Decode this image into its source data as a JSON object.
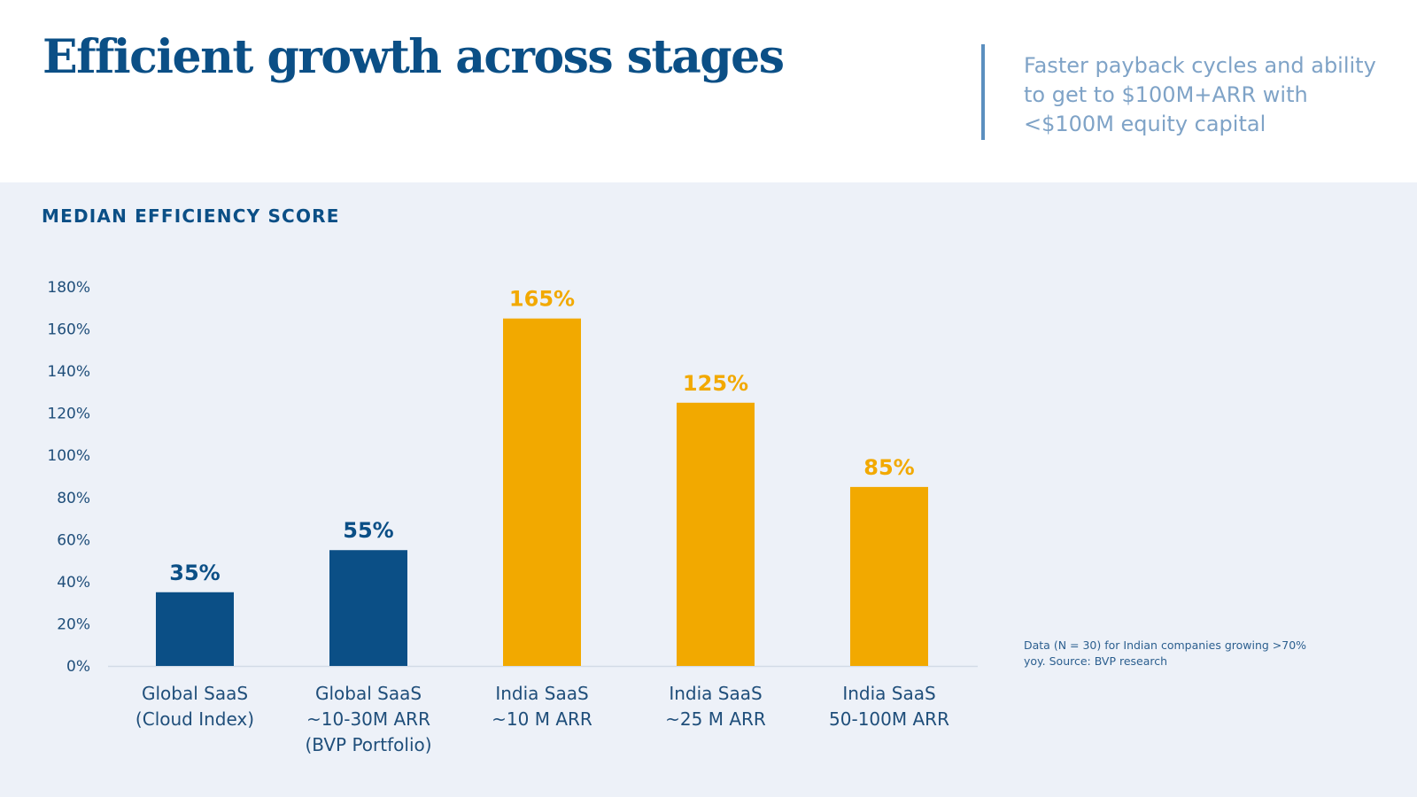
{
  "header": {
    "title": "Efficient growth across stages",
    "subtitle": "Faster payback cycles and ability to get to $100M+ARR with <$100M equity capital"
  },
  "panel": {
    "chart_label": "MEDIAN EFFICIENCY SCORE",
    "note": "Data (N = 30) for Indian companies growing >70% yoy. Source: BVP research"
  },
  "colors": {
    "global": "#0b4f86",
    "india": "#f2a900",
    "axis_text": "#1f4e7a",
    "panel_bg": "#edf1f8"
  },
  "chart_data": {
    "type": "bar",
    "title": "MEDIAN EFFICIENCY SCORE",
    "xlabel": "",
    "ylabel": "",
    "ylim": [
      0,
      180
    ],
    "yticks": [
      0,
      20,
      40,
      60,
      80,
      100,
      120,
      140,
      160,
      180
    ],
    "ytick_labels": [
      "0%",
      "20%",
      "40%",
      "60%",
      "80%",
      "100%",
      "120%",
      "140%",
      "160%",
      "180%"
    ],
    "grid": false,
    "categories": [
      [
        "Global SaaS",
        "(Cloud Index)"
      ],
      [
        "Global SaaS",
        "~10-30M ARR",
        "(BVP Portfolio)"
      ],
      [
        "India SaaS",
        "~10 M ARR"
      ],
      [
        "India SaaS",
        "~25 M ARR"
      ],
      [
        "India SaaS",
        "50-100M ARR"
      ]
    ],
    "values": [
      35,
      55,
      165,
      125,
      85
    ],
    "value_labels": [
      "35%",
      "55%",
      "165%",
      "125%",
      "85%"
    ],
    "bar_groups": [
      "global",
      "global",
      "india",
      "india",
      "india"
    ]
  }
}
